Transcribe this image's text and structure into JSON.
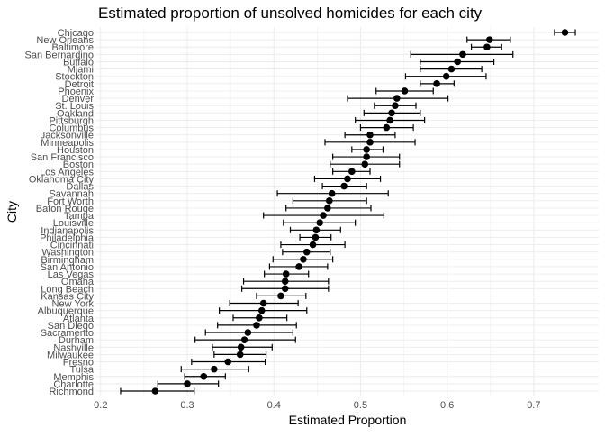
{
  "chart_data": {
    "type": "scatter",
    "title": "Estimated proportion of unsolved homicides for each city",
    "xlabel": "Estimated Proportion",
    "ylabel": "City",
    "xlim": [
      0.195,
      0.775
    ],
    "x_ticks": [
      0.2,
      0.3,
      0.4,
      0.5,
      0.6,
      0.7
    ],
    "x_tick_labels": [
      "0.2",
      "0.3",
      "0.4",
      "0.5",
      "0.6",
      "0.7"
    ],
    "grid": true,
    "marker_color": "#000000",
    "error_bars": true,
    "categories": [
      "Chicago",
      "New Orleans",
      "Baltimore",
      "San Bernardino",
      "Buffalo",
      "Miami",
      "Stockton",
      "Detroit",
      "Phoenix",
      "Denver",
      "St. Louis",
      "Oakland",
      "Pittsburgh",
      "Columbus",
      "Jacksonville",
      "Minneapolis",
      "Houston",
      "San Francisco",
      "Boston",
      "Los Angeles",
      "Oklahoma City",
      "Dallas",
      "Savannah",
      "Fort Worth",
      "Baton Rouge",
      "Tampa",
      "Louisville",
      "Indianapolis",
      "Philadelphia",
      "Cincinnati",
      "Washington",
      "Birmingham",
      "San Antonio",
      "Las Vegas",
      "Omaha",
      "Long Beach",
      "Kansas City",
      "New York",
      "Albuquerque",
      "Atlanta",
      "San Diego",
      "Sacramento",
      "Durham",
      "Nashville",
      "Milwaukee",
      "Fresno",
      "Tulsa",
      "Memphis",
      "Charlotte",
      "Richmond"
    ],
    "estimate": [
      0.736,
      0.649,
      0.646,
      0.618,
      0.612,
      0.605,
      0.599,
      0.588,
      0.551,
      0.542,
      0.54,
      0.536,
      0.534,
      0.53,
      0.511,
      0.511,
      0.507,
      0.507,
      0.505,
      0.49,
      0.485,
      0.481,
      0.467,
      0.464,
      0.462,
      0.457,
      0.453,
      0.449,
      0.448,
      0.445,
      0.438,
      0.434,
      0.429,
      0.414,
      0.413,
      0.413,
      0.408,
      0.388,
      0.386,
      0.383,
      0.38,
      0.37,
      0.366,
      0.362,
      0.361,
      0.347,
      0.331,
      0.319,
      0.3,
      0.263
    ],
    "lower": [
      0.724,
      0.623,
      0.628,
      0.558,
      0.569,
      0.569,
      0.552,
      0.569,
      0.518,
      0.485,
      0.516,
      0.504,
      0.494,
      0.5,
      0.482,
      0.459,
      0.49,
      0.468,
      0.465,
      0.468,
      0.447,
      0.456,
      0.404,
      0.422,
      0.414,
      0.388,
      0.411,
      0.419,
      0.43,
      0.408,
      0.41,
      0.399,
      0.395,
      0.389,
      0.365,
      0.363,
      0.38,
      0.349,
      0.337,
      0.353,
      0.335,
      0.321,
      0.309,
      0.329,
      0.331,
      0.305,
      0.293,
      0.297,
      0.266,
      0.223
    ],
    "upper": [
      0.748,
      0.673,
      0.663,
      0.676,
      0.654,
      0.64,
      0.645,
      0.608,
      0.584,
      0.601,
      0.564,
      0.569,
      0.574,
      0.561,
      0.54,
      0.563,
      0.526,
      0.545,
      0.545,
      0.511,
      0.523,
      0.507,
      0.532,
      0.507,
      0.512,
      0.527,
      0.494,
      0.477,
      0.466,
      0.482,
      0.465,
      0.468,
      0.462,
      0.44,
      0.463,
      0.463,
      0.437,
      0.428,
      0.438,
      0.415,
      0.426,
      0.422,
      0.425,
      0.398,
      0.391,
      0.39,
      0.371,
      0.344,
      0.336,
      0.308
    ]
  }
}
